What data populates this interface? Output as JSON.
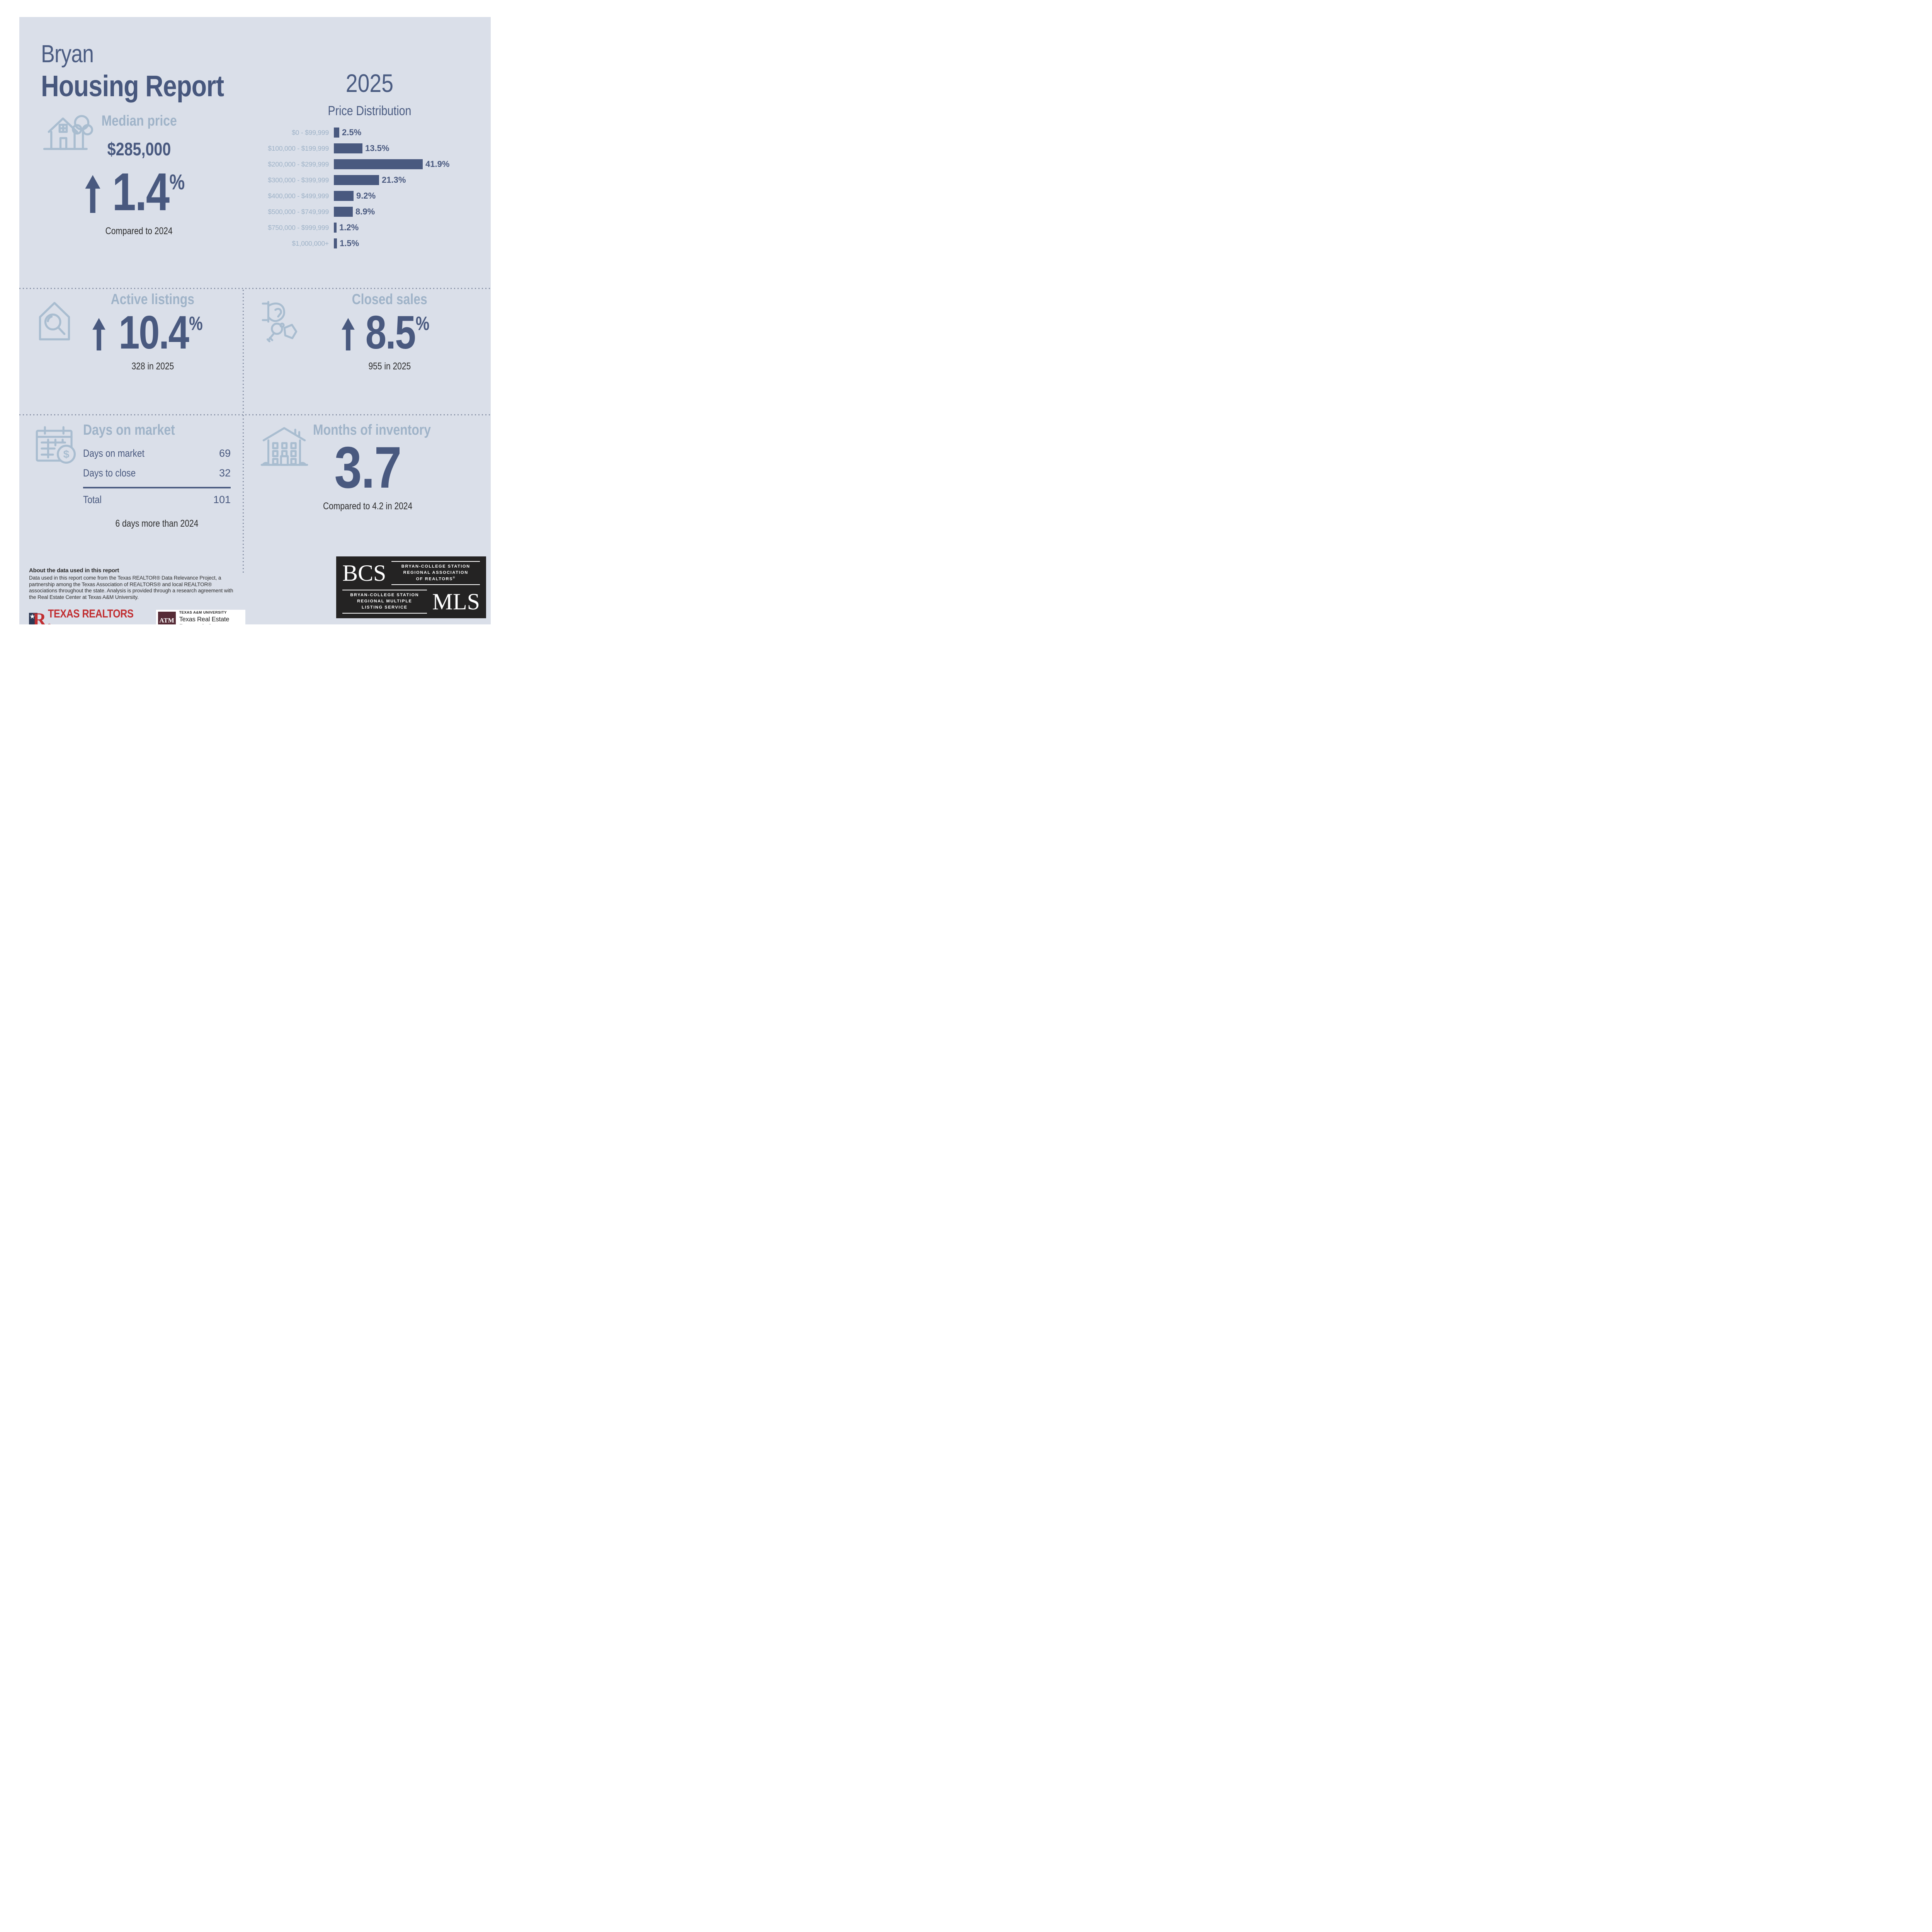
{
  "header": {
    "city": "Bryan",
    "title": "Housing Report",
    "year": "2025"
  },
  "median": {
    "label": "Median price",
    "price": "$285,000",
    "change": "1.4",
    "unit": "%",
    "direction": "up",
    "note": "Compared to 2024"
  },
  "chart_data": {
    "type": "bar",
    "orientation": "horizontal",
    "title": "Price Distribution",
    "categories": [
      "$0 - $99,999",
      "$100,000 - $199,999",
      "$200,000 - $299,999",
      "$300,000 - $399,999",
      "$400,000 - $499,999",
      "$500,000 - $749,999",
      "$750,000 - $999,999",
      "$1,000,000+"
    ],
    "values": [
      2.5,
      13.5,
      41.9,
      21.3,
      9.2,
      8.9,
      1.2,
      1.5
    ],
    "value_labels": [
      "2.5%",
      "13.5%",
      "41.9%",
      "21.3%",
      "9.2%",
      "8.9%",
      "1.2%",
      "1.5%"
    ],
    "unit": "%",
    "xlim": [
      0,
      45
    ],
    "grid": false,
    "legend": "none",
    "bar_color": "#49597f",
    "label_color": "#9fb3c8"
  },
  "active_listings": {
    "label": "Active listings",
    "change": "10.4",
    "unit": "%",
    "direction": "up",
    "note": "328 in 2025"
  },
  "closed_sales": {
    "label": "Closed sales",
    "change": "8.5",
    "unit": "%",
    "direction": "up",
    "note": "955 in 2025"
  },
  "days_on_market": {
    "label": "Days on market",
    "rows": [
      {
        "label": "Days on market",
        "value": "69"
      },
      {
        "label": "Days to close",
        "value": "32"
      }
    ],
    "total_label": "Total",
    "total_value": "101",
    "note": "6 days more than 2024"
  },
  "inventory": {
    "label": "Months of inventory",
    "value": "3.7",
    "note": "Compared to 4.2 in 2024"
  },
  "about": {
    "heading": "About the data used in this report",
    "body": "Data used in this report come from the Texas REALTOR® Data Relevance Project, a partnership among the Texas Association of REALTORS® and local REALTOR® associations throughout the state. Analysis is provided through a research agreement with the Real Estate Center at Texas A&M University."
  },
  "logos": {
    "texas_realtors": {
      "text": "TEXAS REALTORS",
      "reg": "®",
      "star": "★"
    },
    "tamu": {
      "monogram": "ATM",
      "line1": "TEXAS A&M UNIVERSITY",
      "line2": "Texas Real Estate Research Center"
    },
    "bcs_mls": {
      "acronym1": "BCS",
      "org1_line1": "BRYAN-COLLEGE STATION",
      "org1_line2": "REGIONAL ASSOCIATION",
      "org1_line3": "OF REALTORS",
      "org1_reg": "®",
      "org2_line1": "BRYAN-COLLEGE STATION",
      "org2_line2": "REGIONAL MULTIPLE",
      "org2_line3": "LISTING SERVICE",
      "acronym2": "MLS"
    }
  },
  "colors": {
    "panel_background": "#dadfe9",
    "navy": "#49597f",
    "heading_light_blue": "#9fb3c8",
    "icon_blue": "#a9bdd0",
    "dark_text": "#2d2d2d",
    "divider_dots": "#8a94a9",
    "texas_realtors_red": "#c12e31",
    "texas_realtors_navy": "#2e3a55",
    "tamu_maroon": "#562b36",
    "bcs_box": "#242323"
  }
}
